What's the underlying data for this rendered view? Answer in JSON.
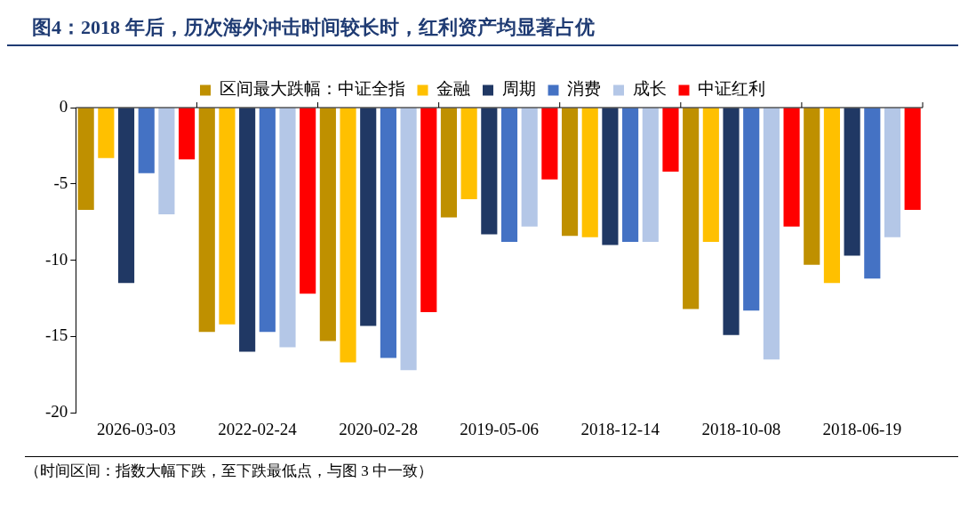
{
  "chart_data": {
    "type": "bar",
    "title": "图4：2018 年后，历次海外冲击时间较长时，红利资产均显著占优",
    "categories": [
      "2026-03-03",
      "2022-02-24",
      "2020-02-28",
      "2019-05-06",
      "2018-12-14",
      "2018-10-08",
      "2018-06-19"
    ],
    "series": [
      {
        "name": "区间最大跌幅：中证全指",
        "color": "#bf9000",
        "values": [
          -6.7,
          -14.7,
          -15.3,
          -7.2,
          -8.4,
          -13.2,
          -10.3
        ]
      },
      {
        "name": "金融",
        "color": "#ffc000",
        "values": [
          -3.3,
          -14.2,
          -16.7,
          -6.0,
          -8.5,
          -8.8,
          -11.5
        ]
      },
      {
        "name": "周期",
        "color": "#203864",
        "values": [
          -11.5,
          -16.0,
          -14.3,
          -8.3,
          -9.0,
          -14.9,
          -9.7
        ]
      },
      {
        "name": "消费",
        "color": "#4472c4",
        "values": [
          -4.3,
          -14.7,
          -16.4,
          -8.8,
          -8.8,
          -13.3,
          -11.2
        ]
      },
      {
        "name": "成长",
        "color": "#b4c7e7",
        "values": [
          -7.0,
          -15.7,
          -17.2,
          -7.8,
          -8.8,
          -16.5,
          -8.5
        ]
      },
      {
        "name": "中证红利",
        "color": "#ff0000",
        "values": [
          -3.4,
          -12.2,
          -13.4,
          -4.7,
          -4.2,
          -7.8,
          -6.7
        ]
      }
    ],
    "ylim": [
      -20,
      0
    ],
    "yticks": [
      -20,
      -15,
      -10,
      -5,
      0
    ],
    "grid": false,
    "legend": "top",
    "annotations": [
      "（时间区间：指数大幅下跌，至下跌最低点，与图 3 中一致）"
    ]
  }
}
